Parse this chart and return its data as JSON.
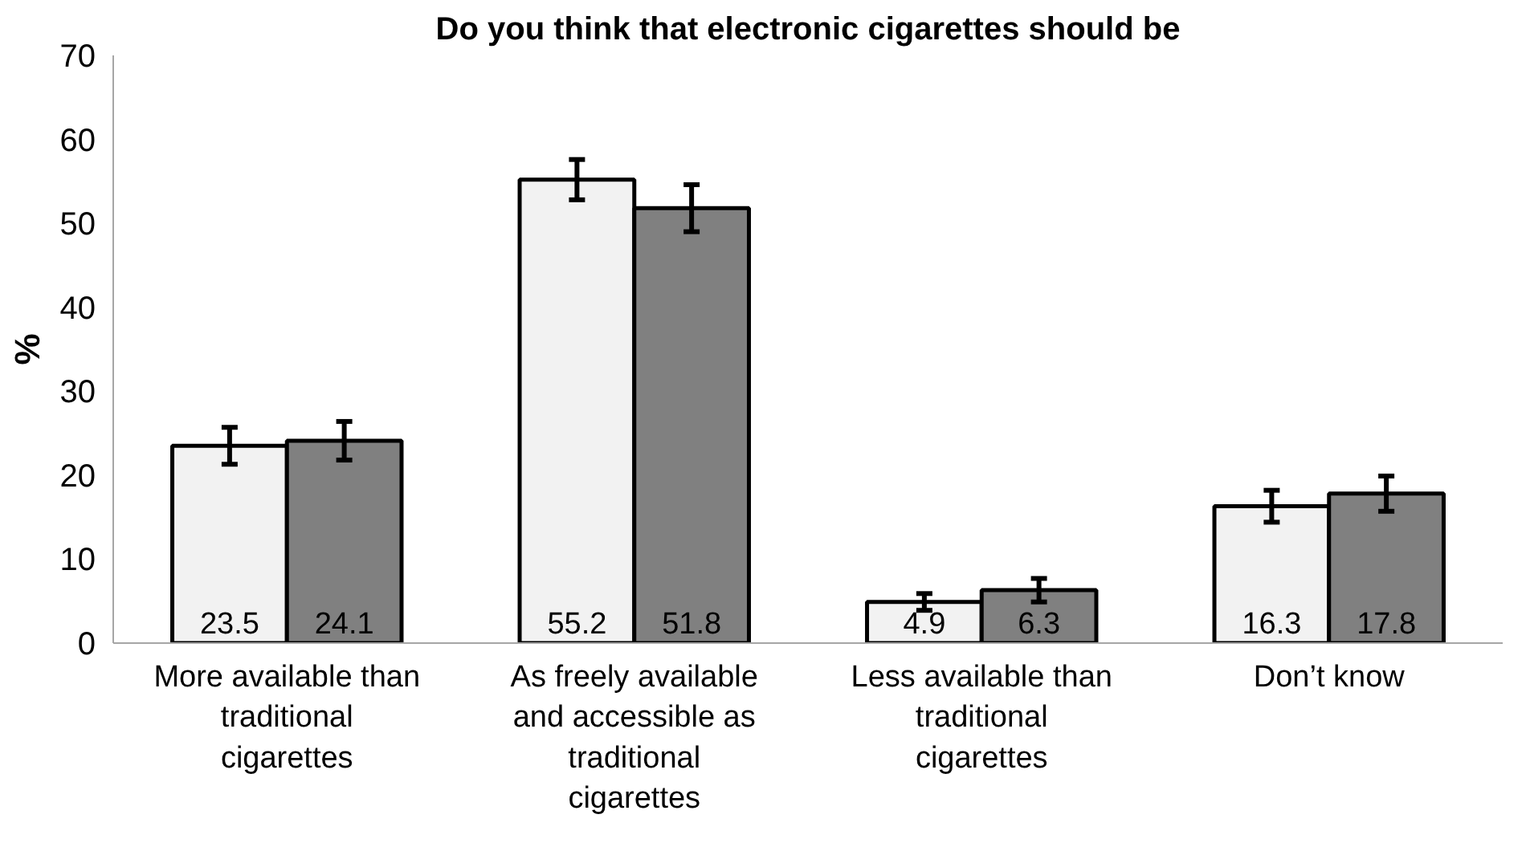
{
  "chart_data": {
    "type": "bar",
    "title": "Do you think that electronic cigarettes should be",
    "ylabel": "%",
    "categories": [
      "More available than traditional cigarettes",
      "As freely available and accessible as traditional cigarettes",
      "Less available than traditional cigarettes",
      "Don’t know"
    ],
    "series": [
      {
        "color": "#f2f2f2",
        "values": [
          23.5,
          55.2,
          4.9,
          16.3
        ],
        "errors": [
          2.2,
          2.4,
          1.0,
          1.9
        ]
      },
      {
        "color": "#808080",
        "values": [
          24.1,
          51.8,
          6.3,
          17.8
        ],
        "errors": [
          2.3,
          2.8,
          1.4,
          2.1
        ]
      }
    ],
    "ylim": [
      0,
      70
    ],
    "yticks": [
      0,
      10,
      20,
      30,
      40,
      50,
      60,
      70
    ],
    "data_labels": true,
    "grid": false
  }
}
